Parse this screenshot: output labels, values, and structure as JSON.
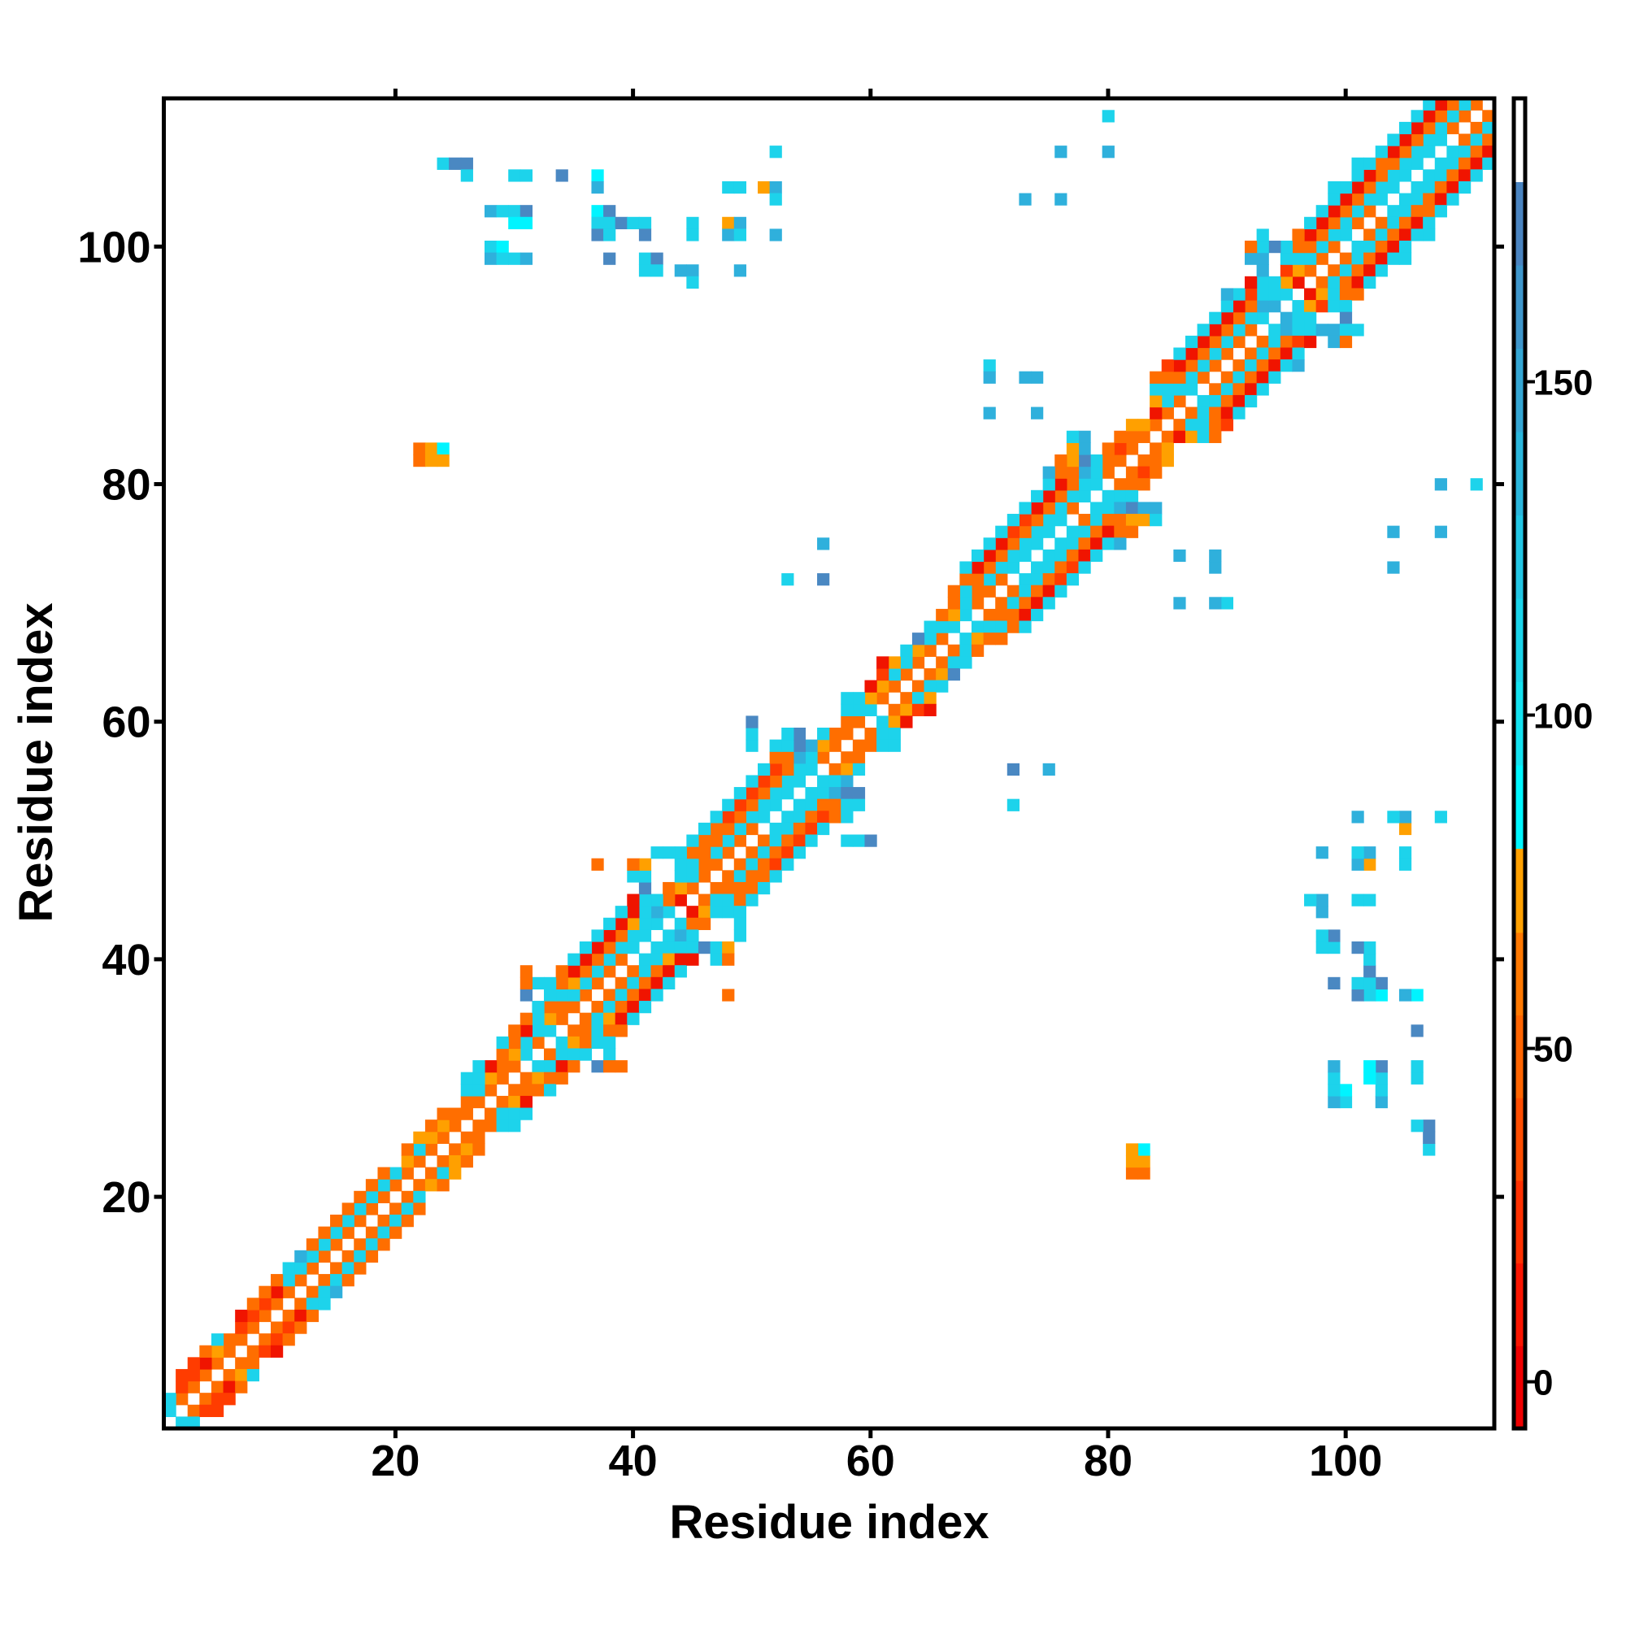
{
  "chart_data": {
    "type": "heatmap",
    "title": "",
    "xlabel": "Residue index",
    "ylabel": "Residue index",
    "n_residues": 112,
    "xlim": [
      0.5,
      112.5
    ],
    "ylim": [
      0.5,
      112.5
    ],
    "x_ticks": [
      20,
      40,
      60,
      80,
      100
    ],
    "y_ticks": [
      20,
      40,
      60,
      80,
      100
    ],
    "x_tick_labels": [
      "20",
      "40",
      "60",
      "80",
      "100"
    ],
    "y_tick_labels": [
      "20",
      "40",
      "60",
      "80",
      "100"
    ],
    "grid": false,
    "symmetric": true,
    "colorbar": {
      "placement": "right",
      "range": [
        -7,
        192.5
      ],
      "ticks": [
        0,
        50,
        100,
        150
      ],
      "tick_labels": [
        "0",
        "50",
        "100",
        "150"
      ],
      "max_colored_value": 180,
      "bands": [
        {
          "from": -7,
          "to": 5.4,
          "color": "#ee0000"
        },
        {
          "from": 5.4,
          "to": 17.8,
          "color": "#fa1500"
        },
        {
          "from": 17.8,
          "to": 30.2,
          "color": "#ff3000"
        },
        {
          "from": 30.2,
          "to": 42.6,
          "color": "#ff4d00"
        },
        {
          "from": 42.6,
          "to": 55,
          "color": "#ff6400"
        },
        {
          "from": 55,
          "to": 67.4,
          "color": "#ff7800"
        },
        {
          "from": 67.4,
          "to": 80,
          "color": "#ffa000"
        },
        {
          "from": 80,
          "to": 92.5,
          "color": "#00f6ff"
        },
        {
          "from": 92.5,
          "to": 105,
          "color": "#14e2f0"
        },
        {
          "from": 105,
          "to": 117.5,
          "color": "#1ad4ea"
        },
        {
          "from": 117.5,
          "to": 130,
          "color": "#22c6e4"
        },
        {
          "from": 130,
          "to": 142.5,
          "color": "#2ab6dc"
        },
        {
          "from": 142.5,
          "to": 155,
          "color": "#34a6d4"
        },
        {
          "from": 155,
          "to": 167.5,
          "color": "#3e96cb"
        },
        {
          "from": 167.5,
          "to": 180,
          "color": "#4a84c0"
        },
        {
          "from": 180,
          "to": 192.5,
          "color": "#ffffff"
        }
      ]
    },
    "value_codes": {
      "r": {
        "value": 3,
        "color": "#f01400"
      },
      "R": {
        "value": 22,
        "color": "#ff3c00"
      },
      "o": {
        "value": 48,
        "color": "#ff6e00"
      },
      "y": {
        "value": 72,
        "color": "#ffa000"
      },
      "k": {
        "value": 86,
        "color": "#00f4ff"
      },
      "c": {
        "value": 105,
        "color": "#1dd3eb"
      },
      "t": {
        "value": 140,
        "color": "#2fb0dc"
      },
      "b": {
        "value": 170,
        "color": "#4a88c2"
      }
    },
    "band_note_format": "row j string: char d = value for residue pair (j-d, j); '.' = no value",
    "near_diagonal": [
      "",
      "c",
      "oc",
      "oR",
      "oRR",
      "orR",
      "oyo",
      "ooc",
      "oR",
      "oRr",
      "oRo",
      "oro",
      "oco",
      "occ",
      "oct",
      "oco",
      "oco",
      "oco",
      "oco",
      "oco",
      "oco",
      "oco",
      "oy",
      "oco",
      "oyy",
      "oyo",
      "ooo",
      "oo",
      "occ",
      "oycc",
      "oorc",
      "cyo",
      "ococ",
      "ccro",
      "oyco",
      "oooc",
      "occc.b",
      "ocyocco",
      "ocoro..o",
      "ocorc",
      "ccorc",
      "ccorc",
      "ccyrc",
      "ctcrc",
      "roccr",
      "oyo.b",
      "occ..cc",
      "oocc..yo..o",
      "ocooccc",
      "ocooc",
      "ocooc",
      "ccoRc",
      "ccoRc",
      "ccoRc",
      "ccoRc",
      "ccoRc",
      "octoo",
      "oytbcc.c",
      "ooc.bc..c",
      "oo.......b",
      "ccc",
      "oycc",
      "oyr",
      "ocR",
      "ocyr",
      "oyc",
      "ocb",
      "ccc",
      "cyo",
      "oco",
      "ooco",
      "ocoo",
      "ccorc",
      "ccorc",
      "ccorc",
      "ccoRc",
      "ccoRc",
      "ocorc",
      "ccorc",
      "ccorc",
      "octoot",
      "oocbyo",
      "oRo.ty",
      "ooo..tc",
      "oyy",
      "or",
      "ocy",
      "cccc",
      "ocooo",
      "ocorR",
      "ocorc",
      "ocorc",
      "ocorc",
      "ccorc",
      "ttorc",
      "cccRct",
      "ryccr",
      "oyR.t",
      "occc.tt",
      "ocoocbco",
      "ccoro..c",
      "ocorc",
      "ocorc",
      "ccorc",
      "ccorcc",
      "ccorc",
      "ccoocc",
      "ccorc",
      "ccorc",
      "ocorc",
      "ocorc",
      "ocorc"
    ],
    "long_range_contacts": [
      [
        52,
        108,
        "c"
      ],
      [
        24,
        107,
        "c"
      ],
      [
        25,
        107,
        "b"
      ],
      [
        26,
        107,
        "b"
      ],
      [
        26,
        106,
        "c"
      ],
      [
        30,
        106,
        "c"
      ],
      [
        31,
        106,
        "c"
      ],
      [
        34,
        106,
        "b"
      ],
      [
        37,
        106,
        "k"
      ],
      [
        37,
        105,
        "t"
      ],
      [
        48,
        105,
        "c"
      ],
      [
        49,
        105,
        "c"
      ],
      [
        51,
        105,
        "y"
      ],
      [
        52,
        105,
        "t"
      ],
      [
        52,
        104,
        "c"
      ],
      [
        28,
        103,
        "t"
      ],
      [
        29,
        103,
        "c"
      ],
      [
        30,
        103,
        "c"
      ],
      [
        31,
        103,
        "b"
      ],
      [
        37,
        103,
        "k"
      ],
      [
        38,
        103,
        "b"
      ],
      [
        30,
        102,
        "k"
      ],
      [
        31,
        102,
        "k"
      ],
      [
        37,
        102,
        "c"
      ],
      [
        38,
        102,
        "c"
      ],
      [
        39,
        102,
        "b"
      ],
      [
        40,
        102,
        "c"
      ],
      [
        41,
        102,
        "c"
      ],
      [
        45,
        102,
        "c"
      ],
      [
        48,
        102,
        "y"
      ],
      [
        49,
        102,
        "t"
      ],
      [
        37,
        101,
        "b"
      ],
      [
        38,
        101,
        "c"
      ],
      [
        41,
        101,
        "b"
      ],
      [
        45,
        101,
        "c"
      ],
      [
        48,
        101,
        "t"
      ],
      [
        49,
        101,
        "c"
      ],
      [
        52,
        101,
        "t"
      ],
      [
        28,
        100,
        "c"
      ],
      [
        29,
        100,
        "k"
      ],
      [
        28,
        99,
        "t"
      ],
      [
        29,
        99,
        "c"
      ],
      [
        30,
        99,
        "c"
      ],
      [
        31,
        99,
        "t"
      ],
      [
        38,
        99,
        "b"
      ],
      [
        41,
        99,
        "c"
      ],
      [
        42,
        99,
        "b"
      ],
      [
        41,
        98,
        "c"
      ],
      [
        42,
        98,
        "c"
      ],
      [
        44,
        98,
        "t"
      ],
      [
        45,
        98,
        "t"
      ],
      [
        49,
        98,
        "t"
      ],
      [
        45,
        97,
        "c"
      ],
      [
        80,
        111,
        "c"
      ],
      [
        76,
        108,
        "t"
      ],
      [
        80,
        108,
        "t"
      ],
      [
        73,
        104,
        "t"
      ],
      [
        76,
        104,
        "t"
      ],
      [
        70,
        90,
        "c"
      ],
      [
        70,
        89,
        "t"
      ],
      [
        73,
        89,
        "t"
      ],
      [
        74,
        89,
        "t"
      ],
      [
        70,
        86,
        "t"
      ],
      [
        74,
        86,
        "t"
      ],
      [
        22,
        83,
        "o"
      ],
      [
        23,
        83,
        "y"
      ],
      [
        24,
        83,
        "k"
      ],
      [
        22,
        82,
        "o"
      ],
      [
        23,
        82,
        "y"
      ],
      [
        24,
        82,
        "y"
      ],
      [
        56,
        75,
        "t"
      ],
      [
        53,
        72,
        "c"
      ],
      [
        56,
        72,
        "b"
      ]
    ]
  }
}
